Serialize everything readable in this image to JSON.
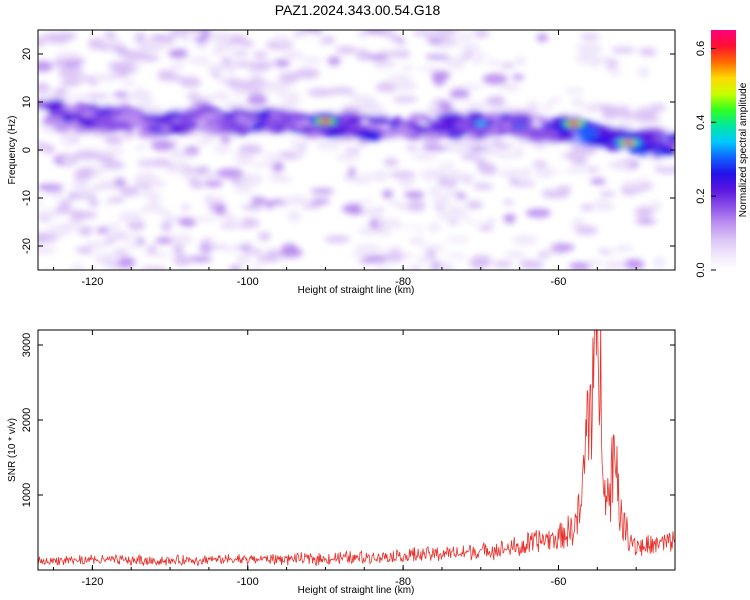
{
  "title": "PAZ1.2024.343.00.54.G18",
  "colors": {
    "snr_line": "#e8312c",
    "colormap": [
      "#ffffff",
      "#f0e6fb",
      "#d9c0f5",
      "#b98cf0",
      "#8a4ee8",
      "#5a16e0",
      "#2410e8",
      "#1060ff",
      "#00c8ff",
      "#00e8a0",
      "#30ff20",
      "#c8ff00",
      "#ffd800",
      "#ff6a00",
      "#ff1030",
      "#ff0080"
    ]
  },
  "chart_data": [
    {
      "type": "heatmap",
      "xlabel": "Height of straight line (km)",
      "ylabel": "Frequency (Hz)",
      "xlim": [
        -127,
        -45
      ],
      "ylim": [
        -25,
        25
      ],
      "xticks": [
        -120,
        -100,
        -80,
        -60
      ],
      "yticks": [
        -20,
        -10,
        0,
        10,
        20
      ],
      "xtick_labels": [
        "-120",
        "-100",
        "-80",
        "-60"
      ],
      "ytick_labels": [
        "-20",
        "-10",
        "0",
        "10",
        "20"
      ],
      "colorbar": {
        "label": "Normalized spectral amplitude",
        "range": [
          0.0,
          0.65
        ],
        "ticks": [
          0.0,
          0.2,
          0.4,
          0.6
        ],
        "tick_labels": [
          "0.0",
          "0.2",
          "0.4",
          "0.6"
        ]
      },
      "ridge": {
        "description_points_x": [
          -127,
          -115,
          -105,
          -95,
          -85,
          -75,
          -65,
          -58,
          -52,
          -45
        ],
        "description_points_y": [
          8,
          6,
          6,
          6,
          5,
          5,
          5,
          4,
          2,
          1
        ]
      },
      "peaks": [
        {
          "x": -90,
          "y": 6,
          "value": 0.6
        },
        {
          "x": -58,
          "y": 5.5,
          "value": 0.62
        },
        {
          "x": -51,
          "y": 1.5,
          "value": 0.64
        },
        {
          "x": -70,
          "y": 5.5,
          "value": 0.35
        },
        {
          "x": -65,
          "y": 5,
          "value": 0.3
        },
        {
          "x": -112,
          "y": 4.5,
          "value": 0.25
        }
      ]
    },
    {
      "type": "line",
      "xlabel": "Height of straight line (km)",
      "ylabel": "SNR (10 * v/v)",
      "xlim": [
        -127,
        -45
      ],
      "ylim": [
        0,
        3200
      ],
      "xticks": [
        -120,
        -100,
        -80,
        -60
      ],
      "yticks": [
        1000,
        2000,
        3000
      ],
      "xtick_labels": [
        "-120",
        "-100",
        "-80",
        "-60"
      ],
      "ytick_labels": [
        "1000",
        "2000",
        "3000"
      ],
      "series": [
        {
          "x": [
            -127,
            -120,
            -110,
            -100,
            -90,
            -80,
            -75,
            -70,
            -65,
            -62,
            -60,
            -58,
            -57,
            -56.5,
            -56,
            -55.5,
            -55,
            -54.5,
            -54,
            -53.5,
            -53,
            -52.5,
            -52,
            -51,
            -50,
            -48,
            -45
          ],
          "values": [
            120,
            140,
            130,
            150,
            160,
            200,
            230,
            260,
            320,
            420,
            450,
            600,
            900,
            1800,
            2350,
            2700,
            3200,
            2600,
            1300,
            900,
            1600,
            1650,
            700,
            500,
            350,
            330,
            420
          ]
        }
      ]
    }
  ]
}
